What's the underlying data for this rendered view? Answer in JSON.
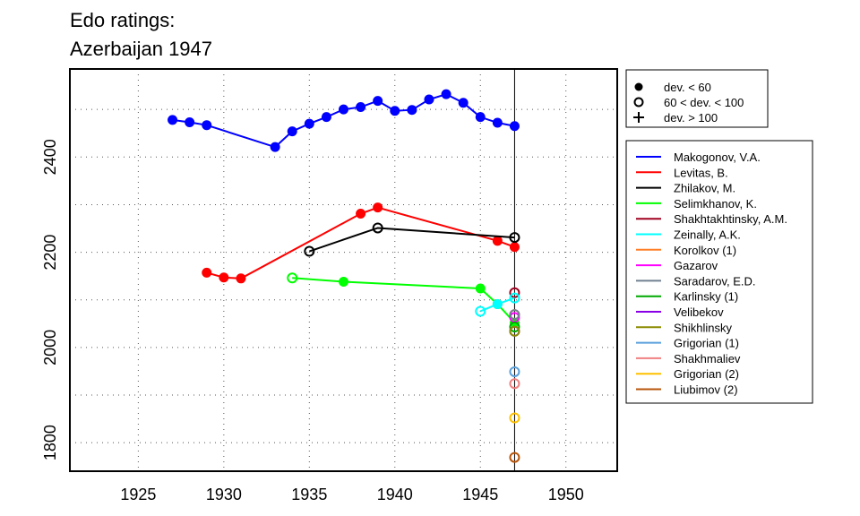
{
  "chart_data": {
    "type": "line",
    "title": [
      "Edo ratings:",
      "Azerbaijan 1947"
    ],
    "xlabel": "",
    "ylabel": "",
    "xlim": [
      1921,
      1953
    ],
    "ylim": [
      1740,
      2585
    ],
    "x_ticks": [
      1925,
      1930,
      1935,
      1940,
      1945,
      1950
    ],
    "y_ticks": [
      1800,
      2000,
      2200,
      2400
    ],
    "grid": true,
    "vline_x": 1947,
    "symbol_legend": [
      {
        "marker": "filled",
        "label": "dev. < 60"
      },
      {
        "marker": "open",
        "label": "60 < dev. < 100"
      },
      {
        "marker": "plus",
        "label": "dev. > 100"
      }
    ],
    "series": [
      {
        "name": "Makogonov, V.A.",
        "color": "#0000ff",
        "points": [
          [
            1927,
            2478,
            "f"
          ],
          [
            1928,
            2473,
            "f"
          ],
          [
            1929,
            2467,
            "f"
          ],
          [
            1933,
            2421,
            "f"
          ],
          [
            1934,
            2454,
            "f"
          ],
          [
            1935,
            2470,
            "f"
          ],
          [
            1936,
            2484,
            "f"
          ],
          [
            1937,
            2500,
            "f"
          ],
          [
            1938,
            2505,
            "f"
          ],
          [
            1939,
            2518,
            "f"
          ],
          [
            1940,
            2497,
            "f"
          ],
          [
            1941,
            2499,
            "f"
          ],
          [
            1942,
            2521,
            "f"
          ],
          [
            1943,
            2532,
            "f"
          ],
          [
            1944,
            2514,
            "f"
          ],
          [
            1945,
            2484,
            "f"
          ],
          [
            1946,
            2472,
            "f"
          ],
          [
            1947,
            2465,
            "f"
          ]
        ]
      },
      {
        "name": "Levitas, B.",
        "color": "#ff0000",
        "points": [
          [
            1929,
            2157,
            "f"
          ],
          [
            1930,
            2147,
            "f"
          ],
          [
            1931,
            2145,
            "f"
          ],
          [
            1938,
            2281,
            "f"
          ],
          [
            1939,
            2294,
            "f"
          ],
          [
            1946,
            2224,
            "f"
          ],
          [
            1947,
            2211,
            "f"
          ]
        ]
      },
      {
        "name": "Zhilakov, M.",
        "color": "#000000",
        "points": [
          [
            1935,
            2202,
            "o"
          ],
          [
            1939,
            2251,
            "o"
          ],
          [
            1947,
            2231,
            "o"
          ]
        ]
      },
      {
        "name": "Selimkhanov, K.",
        "color": "#00ff00",
        "points": [
          [
            1934,
            2146,
            "o"
          ],
          [
            1937,
            2138,
            "f"
          ],
          [
            1945,
            2124,
            "f"
          ],
          [
            1946,
            2091,
            "f"
          ],
          [
            1947,
            2052,
            "f"
          ]
        ]
      },
      {
        "name": "Shakhtakhtinsky, A.M.",
        "color": "#a0001e",
        "points": [
          [
            1947,
            2115,
            "o"
          ]
        ]
      },
      {
        "name": "Zeinally, A.K.",
        "color": "#00ffff",
        "points": [
          [
            1945,
            2076,
            "o"
          ],
          [
            1946,
            2091,
            "f"
          ],
          [
            1947,
            2104,
            "o"
          ]
        ]
      },
      {
        "name": "Korolkov (1)",
        "color": "#ff7f27",
        "points": [
          [
            1947,
            2069,
            "o"
          ]
        ]
      },
      {
        "name": "Gazarov",
        "color": "#ff00ff",
        "points": [
          [
            1947,
            2063,
            "o"
          ]
        ]
      },
      {
        "name": "Saradarov, E.D.",
        "color": "#708090",
        "points": [
          [
            1947,
            2069,
            "o"
          ]
        ]
      },
      {
        "name": "Karlinsky (1)",
        "color": "#00a800",
        "points": [
          [
            1947,
            2043,
            "o"
          ]
        ]
      },
      {
        "name": "Velibekov",
        "color": "#8a00e6",
        "points": [
          [
            1947,
            2034,
            "o"
          ]
        ]
      },
      {
        "name": "Shikhlinsky",
        "color": "#8b8b00",
        "points": [
          [
            1947,
            2034,
            "o"
          ]
        ]
      },
      {
        "name": "Grigorian (1)",
        "color": "#5aa0dc",
        "points": [
          [
            1947,
            1949,
            "o"
          ]
        ]
      },
      {
        "name": "Shakhmaliev",
        "color": "#f08080",
        "points": [
          [
            1947,
            1924,
            "o"
          ]
        ]
      },
      {
        "name": "Grigorian (2)",
        "color": "#ffc000",
        "points": [
          [
            1947,
            1852,
            "o"
          ]
        ]
      },
      {
        "name": "Liubimov (2)",
        "color": "#b8560b",
        "points": [
          [
            1947,
            1769,
            "o"
          ]
        ]
      }
    ]
  }
}
